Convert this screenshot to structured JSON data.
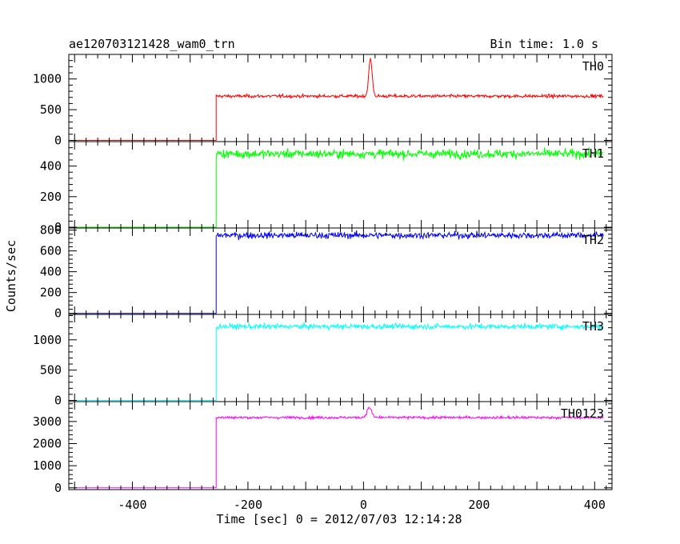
{
  "title": "ae120703121428_wam0_trn",
  "bin_time": "Bin time: 1.0 s",
  "xlabel": "Time [sec] 0 = 2012/07/03 12:14:28",
  "ylabel": "Counts/sec",
  "chart_data": {
    "type": "line",
    "xlim": [
      -510,
      430
    ],
    "x_ticks": [
      -400,
      -200,
      0,
      200,
      400
    ],
    "x_start": -500,
    "x_end": 415,
    "step_time": -255,
    "series": [
      {
        "name": "TH0",
        "color": "#ff0000",
        "pre_level": 0,
        "post_level": 720,
        "noise": 18,
        "peak": {
          "x": 12,
          "height": 600,
          "width": 3
        },
        "ylim": [
          -20,
          1400
        ],
        "y_ticks": [
          0,
          500,
          1000
        ]
      },
      {
        "name": "TH1",
        "color": "#00ff00",
        "pre_level": 0,
        "post_level": 480,
        "noise": 20,
        "peak": null,
        "ylim": [
          -5,
          560
        ],
        "y_ticks": [
          0,
          200,
          400
        ]
      },
      {
        "name": "TH2",
        "color": "#0000ff",
        "pre_level": 0,
        "post_level": 750,
        "noise": 22,
        "peak": null,
        "ylim": [
          -10,
          820
        ],
        "y_ticks": [
          0,
          200,
          400,
          600,
          800
        ]
      },
      {
        "name": "TH3",
        "color": "#00ffff",
        "pre_level": 0,
        "post_level": 1220,
        "noise": 30,
        "peak": null,
        "ylim": [
          -20,
          1420
        ],
        "y_ticks": [
          0,
          500,
          1000
        ]
      },
      {
        "name": "TH0123",
        "color": "#ff00ff",
        "pre_level": 0,
        "post_level": 3180,
        "noise": 40,
        "peak": {
          "x": 10,
          "height": 450,
          "width": 4
        },
        "ylim": [
          -80,
          3900
        ],
        "y_ticks": [
          0,
          1000,
          2000,
          3000
        ]
      }
    ]
  }
}
